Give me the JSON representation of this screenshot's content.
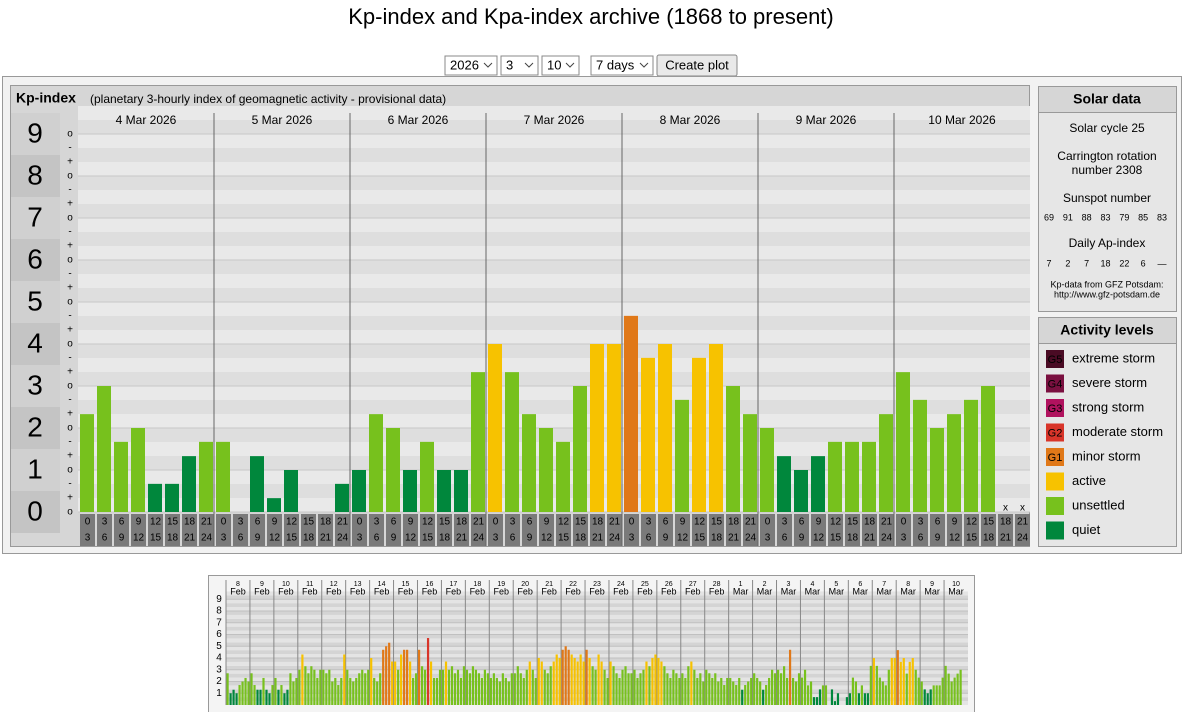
{
  "title": "Kp-index and Kpa-index archive (1868 to present)",
  "controls": {
    "year": "2026",
    "month": "3",
    "day": "10",
    "span": "7 days",
    "button": "Create plot"
  },
  "chart_data": [
    {
      "type": "bar",
      "title": "Kp-index",
      "subtitle": "(planetary 3-hourly index of geomagnetic activity - provisional data)",
      "days": [
        "4 Mar 2026",
        "5 Mar 2026",
        "6 Mar 2026",
        "7 Mar 2026",
        "8 Mar 2026",
        "9 Mar 2026",
        "10 Mar 2026"
      ],
      "hours": [
        [
          "0",
          "3"
        ],
        [
          "3",
          "6"
        ],
        [
          "6",
          "9"
        ],
        [
          "9",
          "12"
        ],
        [
          "12",
          "15"
        ],
        [
          "15",
          "18"
        ],
        [
          "18",
          "21"
        ],
        [
          "21",
          "24"
        ]
      ],
      "missing_label": "x",
      "values": [
        2.33,
        3,
        1.67,
        2,
        0.67,
        0.67,
        1.33,
        1.67,
        1.67,
        0,
        1.33,
        0.33,
        1,
        0,
        0,
        0.67,
        1,
        2.33,
        2,
        1,
        1.67,
        1,
        1,
        3.33,
        4,
        3.33,
        2.33,
        2,
        1.67,
        3,
        4,
        4,
        4.67,
        3.67,
        4,
        2.67,
        3.67,
        4,
        3,
        2.33,
        2,
        1.33,
        1,
        1.33,
        1.67,
        1.67,
        1.67,
        2.33,
        3.33,
        2.67,
        2,
        2.33,
        2.67,
        3,
        null,
        null
      ],
      "colors": [
        "#77c11d",
        "#77c11d",
        "#77c11d",
        "#77c11d",
        "#00873c",
        "#00873c",
        "#00873c",
        "#77c11d",
        "#77c11d",
        "#00873c",
        "#00873c",
        "#00873c",
        "#00873c",
        "#00873c",
        "#00873c",
        "#00873c",
        "#00873c",
        "#77c11d",
        "#77c11d",
        "#00873c",
        "#77c11d",
        "#00873c",
        "#00873c",
        "#77c11d",
        "#f7c200",
        "#77c11d",
        "#77c11d",
        "#77c11d",
        "#77c11d",
        "#77c11d",
        "#f7c200",
        "#f7c200",
        "#e07818",
        "#f7c200",
        "#f7c200",
        "#77c11d",
        "#f7c200",
        "#f7c200",
        "#77c11d",
        "#77c11d",
        "#77c11d",
        "#00873c",
        "#00873c",
        "#00873c",
        "#77c11d",
        "#77c11d",
        "#77c11d",
        "#77c11d",
        "#77c11d",
        "#77c11d",
        "#77c11d",
        "#77c11d",
        "#77c11d",
        "#77c11d",
        null,
        null
      ],
      "ylim": [
        0,
        9.5
      ],
      "yticks": [
        0,
        1,
        2,
        3,
        4,
        5,
        6,
        7,
        8,
        9
      ],
      "minor_tick_labels": [
        "+",
        "o",
        "-"
      ]
    },
    {
      "type": "bar",
      "days": [
        {
          "day": "8",
          "month": "Feb"
        },
        {
          "day": "9",
          "month": "Feb"
        },
        {
          "day": "10",
          "month": "Feb"
        },
        {
          "day": "11",
          "month": "Feb"
        },
        {
          "day": "12",
          "month": "Feb"
        },
        {
          "day": "13",
          "month": "Feb"
        },
        {
          "day": "14",
          "month": "Feb"
        },
        {
          "day": "15",
          "month": "Feb"
        },
        {
          "day": "16",
          "month": "Feb"
        },
        {
          "day": "17",
          "month": "Feb"
        },
        {
          "day": "18",
          "month": "Feb"
        },
        {
          "day": "19",
          "month": "Feb"
        },
        {
          "day": "20",
          "month": "Feb"
        },
        {
          "day": "21",
          "month": "Feb"
        },
        {
          "day": "22",
          "month": "Feb"
        },
        {
          "day": "23",
          "month": "Feb"
        },
        {
          "day": "24",
          "month": "Feb"
        },
        {
          "day": "25",
          "month": "Feb"
        },
        {
          "day": "26",
          "month": "Feb"
        },
        {
          "day": "27",
          "month": "Feb"
        },
        {
          "day": "28",
          "month": "Feb"
        },
        {
          "day": "1",
          "month": "Mar"
        },
        {
          "day": "2",
          "month": "Mar"
        },
        {
          "day": "3",
          "month": "Mar"
        },
        {
          "day": "4",
          "month": "Mar"
        },
        {
          "day": "5",
          "month": "Mar"
        },
        {
          "day": "6",
          "month": "Mar"
        },
        {
          "day": "7",
          "month": "Mar"
        },
        {
          "day": "8",
          "month": "Mar"
        },
        {
          "day": "9",
          "month": "Mar"
        },
        {
          "day": "10",
          "month": "Mar"
        }
      ],
      "today_color": "#1a9a3a",
      "values": [
        2.7,
        1,
        1.3,
        1,
        1.7,
        2,
        2.3,
        2,
        2.7,
        1.7,
        1.3,
        1.3,
        2.3,
        1.3,
        1,
        1.7,
        2.3,
        1.3,
        1.7,
        1,
        1.3,
        2.7,
        2,
        2.3,
        3,
        4.3,
        3.3,
        2.7,
        3.3,
        3,
        2.3,
        3,
        3,
        2.7,
        3,
        2,
        2.3,
        1.7,
        2.3,
        4.3,
        3,
        2.3,
        2,
        2.3,
        2.7,
        3,
        2.7,
        3,
        4,
        2.3,
        2,
        2.7,
        4.7,
        5,
        5.3,
        3.7,
        3.7,
        3,
        4.3,
        4.7,
        4.7,
        3.7,
        2.3,
        2.7,
        4.7,
        3.3,
        3,
        5.7,
        3.7,
        2.3,
        2.3,
        3,
        3,
        3.7,
        3,
        3.3,
        2.7,
        3,
        2.3,
        3.3,
        3,
        2.7,
        3.3,
        3,
        2.7,
        2.3,
        3,
        2.7,
        2.3,
        2.7,
        2.3,
        2,
        2.7,
        2.3,
        2,
        2.7,
        2.7,
        3.3,
        2.7,
        2.3,
        3,
        3.7,
        3,
        2.3,
        4,
        3.7,
        3,
        2.7,
        3.3,
        3.7,
        4.3,
        4,
        4.7,
        5,
        4.7,
        4.3,
        4,
        3.7,
        4.3,
        3.7,
        4.7,
        4,
        3.3,
        3,
        4.3,
        3.7,
        3,
        2.3,
        3.7,
        3.3,
        2.7,
        2.3,
        3,
        3.3,
        2.7,
        2.7,
        3,
        2.3,
        2.7,
        3,
        3.7,
        3.3,
        4,
        4.3,
        4,
        3.7,
        3.3,
        2.7,
        2.3,
        3,
        2.7,
        2.3,
        2.7,
        2.3,
        3.3,
        3.7,
        3,
        2.3,
        2.7,
        2,
        3,
        2.7,
        2.3,
        2.7,
        2,
        2.3,
        1.7,
        2.3,
        2.3,
        2,
        1.7,
        2.3,
        1.3,
        1.7,
        2,
        2.3,
        2.7,
        2.3,
        2,
        1.3,
        1.7,
        2.3,
        3,
        2.7,
        3,
        2.7,
        3.3,
        2.3,
        4.7,
        2.3,
        2,
        2.7,
        2.33,
        3,
        1.67,
        2,
        0.67,
        0.67,
        1.33,
        1.67,
        1.67,
        0,
        1.33,
        0.33,
        1,
        0,
        0,
        0.67,
        1,
        2.33,
        2,
        1,
        1.67,
        1,
        1,
        3.33,
        4,
        3.33,
        2.33,
        2,
        1.67,
        3,
        4,
        4,
        4.67,
        3.67,
        4,
        2.67,
        3.67,
        4,
        3,
        2.33,
        2,
        1.33,
        1,
        1.33,
        1.67,
        1.67,
        1.67,
        2.33,
        3.33,
        2.67,
        2,
        2.33,
        2.67,
        3,
        null,
        null
      ],
      "colors": [
        "#77c11d",
        "#00873c",
        "#00873c",
        "#00873c",
        "#77c11d",
        "#77c11d",
        "#77c11d",
        "#77c11d",
        "#77c11d",
        "#77c11d",
        "#00873c",
        "#00873c",
        "#77c11d",
        "#00873c",
        "#00873c",
        "#77c11d",
        "#77c11d",
        "#00873c",
        "#77c11d",
        "#00873c",
        "#00873c",
        "#77c11d",
        "#77c11d",
        "#77c11d",
        "#77c11d",
        "#f7c200",
        "#77c11d",
        "#77c11d",
        "#77c11d",
        "#77c11d",
        "#77c11d",
        "#77c11d",
        "#77c11d",
        "#77c11d",
        "#77c11d",
        "#77c11d",
        "#77c11d",
        "#77c11d",
        "#77c11d",
        "#f7c200",
        "#77c11d",
        "#77c11d",
        "#77c11d",
        "#77c11d",
        "#77c11d",
        "#77c11d",
        "#77c11d",
        "#77c11d",
        "#f7c200",
        "#77c11d",
        "#77c11d",
        "#77c11d",
        "#e07818",
        "#e07818",
        "#e07818",
        "#f7c200",
        "#f7c200",
        "#77c11d",
        "#f7c200",
        "#e07818",
        "#e07818",
        "#f7c200",
        "#77c11d",
        "#77c11d",
        "#e07818",
        "#77c11d",
        "#77c11d",
        "#d8352a",
        "#f7c200",
        "#77c11d",
        "#77c11d",
        "#77c11d",
        "#77c11d",
        "#f7c200",
        "#77c11d",
        "#77c11d",
        "#77c11d",
        "#77c11d",
        "#77c11d",
        "#77c11d",
        "#77c11d",
        "#77c11d",
        "#77c11d",
        "#77c11d",
        "#77c11d",
        "#77c11d",
        "#77c11d",
        "#77c11d",
        "#77c11d",
        "#77c11d",
        "#77c11d",
        "#77c11d",
        "#77c11d",
        "#77c11d",
        "#77c11d",
        "#77c11d",
        "#77c11d",
        "#77c11d",
        "#77c11d",
        "#77c11d",
        "#77c11d",
        "#f7c200",
        "#77c11d",
        "#77c11d",
        "#f7c200",
        "#f7c200",
        "#77c11d",
        "#77c11d",
        "#77c11d",
        "#f7c200",
        "#f7c200",
        "#f7c200",
        "#e07818",
        "#e07818",
        "#e07818",
        "#f7c200",
        "#f7c200",
        "#f7c200",
        "#f7c200",
        "#f7c200",
        "#e07818",
        "#f7c200",
        "#77c11d",
        "#77c11d",
        "#f7c200",
        "#f7c200",
        "#77c11d",
        "#77c11d",
        "#f7c200",
        "#77c11d",
        "#77c11d",
        "#77c11d",
        "#77c11d",
        "#77c11d",
        "#77c11d",
        "#77c11d",
        "#77c11d",
        "#77c11d",
        "#77c11d",
        "#77c11d",
        "#f7c200",
        "#77c11d",
        "#f7c200",
        "#f7c200",
        "#f7c200",
        "#f7c200",
        "#77c11d",
        "#77c11d",
        "#77c11d",
        "#77c11d",
        "#77c11d",
        "#77c11d",
        "#77c11d",
        "#77c11d",
        "#77c11d",
        "#f7c200",
        "#77c11d",
        "#77c11d",
        "#77c11d",
        "#77c11d",
        "#77c11d",
        "#77c11d",
        "#77c11d",
        "#77c11d",
        "#77c11d",
        "#77c11d",
        "#77c11d",
        "#77c11d",
        "#77c11d",
        "#77c11d",
        "#77c11d",
        "#77c11d",
        "#00873c",
        "#77c11d",
        "#77c11d",
        "#77c11d",
        "#77c11d",
        "#77c11d",
        "#77c11d",
        "#00873c",
        "#77c11d",
        "#77c11d",
        "#77c11d",
        "#77c11d",
        "#77c11d",
        "#77c11d",
        "#77c11d",
        "#77c11d",
        "#e07818",
        "#77c11d",
        "#77c11d",
        "#77c11d",
        "#77c11d",
        "#77c11d",
        "#77c11d",
        "#77c11d",
        "#00873c",
        "#00873c",
        "#00873c",
        "#77c11d",
        "#77c11d",
        "#00873c",
        "#00873c",
        "#00873c",
        "#00873c",
        "#00873c",
        "#00873c",
        "#00873c",
        "#00873c",
        "#77c11d",
        "#77c11d",
        "#00873c",
        "#77c11d",
        "#00873c",
        "#00873c",
        "#77c11d",
        "#f7c200",
        "#77c11d",
        "#77c11d",
        "#77c11d",
        "#77c11d",
        "#77c11d",
        "#f7c200",
        "#f7c200",
        "#e07818",
        "#f7c200",
        "#f7c200",
        "#77c11d",
        "#f7c200",
        "#f7c200",
        "#77c11d",
        "#77c11d",
        "#77c11d",
        "#00873c",
        "#00873c",
        "#00873c",
        "#77c11d",
        "#77c11d",
        "#77c11d",
        "#77c11d",
        "#77c11d",
        "#77c11d",
        "#77c11d",
        "#77c11d",
        "#77c11d",
        "#77c11d",
        null,
        null
      ],
      "ylim": [
        0,
        9.5
      ],
      "yticks": [
        1,
        2,
        3,
        4,
        5,
        6,
        7,
        8,
        9
      ]
    }
  ],
  "solar_data": {
    "title": "Solar data",
    "cycle": "Solar cycle 25",
    "carrington": [
      "Carrington rotation",
      "number 2308"
    ],
    "sunspot_title": "Sunspot number",
    "sunspots": [
      "69",
      "91",
      "88",
      "83",
      "79",
      "85",
      "83"
    ],
    "ap_title": "Daily Ap-index",
    "ap": [
      "7",
      "2",
      "7",
      "18",
      "22",
      "6",
      "—"
    ],
    "source": [
      "Kp-data from GFZ Potsdam:",
      "http://www.gfz-potsdam.de"
    ]
  },
  "activity_levels": {
    "title": "Activity levels",
    "items": [
      {
        "code": "G5",
        "label": "extreme storm",
        "color": "#4a0b24"
      },
      {
        "code": "G4",
        "label": "severe storm",
        "color": "#7a1040"
      },
      {
        "code": "G3",
        "label": "strong storm",
        "color": "#b0125e"
      },
      {
        "code": "G2",
        "label": "moderate storm",
        "color": "#d8352a"
      },
      {
        "code": "G1",
        "label": "minor storm",
        "color": "#e07818"
      },
      {
        "label": "active",
        "color": "#f7c200"
      },
      {
        "label": "unsettled",
        "color": "#77c11d"
      },
      {
        "label": "quiet",
        "color": "#00873c"
      }
    ]
  }
}
